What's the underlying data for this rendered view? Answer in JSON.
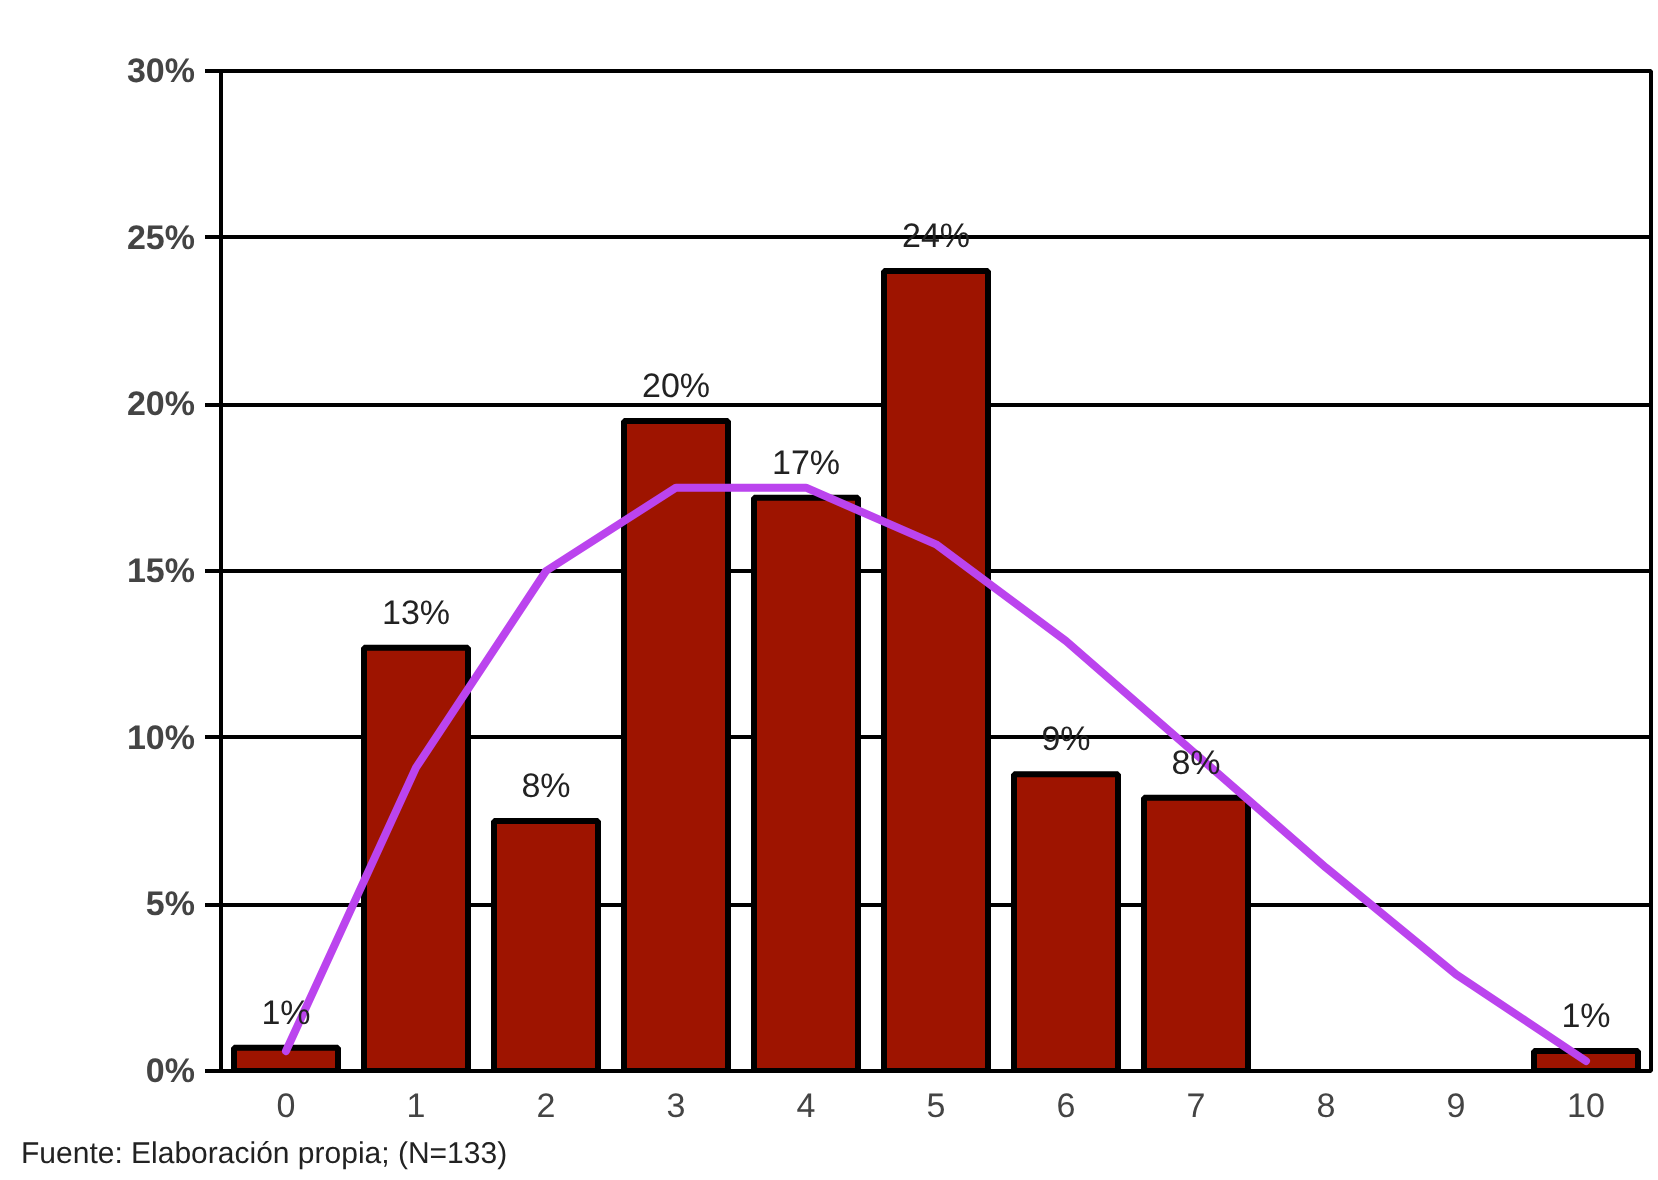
{
  "chart_data": {
    "type": "bar",
    "categories": [
      "0",
      "1",
      "2",
      "3",
      "4",
      "5",
      "6",
      "7",
      "8",
      "9",
      "10"
    ],
    "series": [
      {
        "color": "#9e1400",
        "values": [
          0.7,
          12.7,
          7.5,
          19.5,
          17.2,
          24.0,
          8.9,
          8.2,
          null,
          null,
          0.6
        ],
        "value_labels": [
          "1%",
          "13%",
          "8%",
          "20%",
          "17%",
          "24%",
          "9%",
          "8%",
          null,
          null,
          "1%"
        ]
      },
      {
        "type": "line",
        "color": "#bb44ee",
        "values": [
          0.6,
          9.1,
          15.0,
          17.5,
          17.5,
          15.8,
          12.9,
          9.5,
          6.1,
          2.9,
          0.3
        ]
      }
    ],
    "ylim": [
      0,
      30
    ],
    "yticks": [
      {
        "value": 0,
        "label": "0%"
      },
      {
        "value": 5,
        "label": "5%"
      },
      {
        "value": 10,
        "label": "10%"
      },
      {
        "value": 15,
        "label": "15%"
      },
      {
        "value": 20,
        "label": "20%"
      },
      {
        "value": 25,
        "label": "25%"
      },
      {
        "value": 30,
        "label": "30%"
      }
    ],
    "grid": "y",
    "annotations": [
      "Fuente: Elaboración propia; (N=133)"
    ]
  }
}
